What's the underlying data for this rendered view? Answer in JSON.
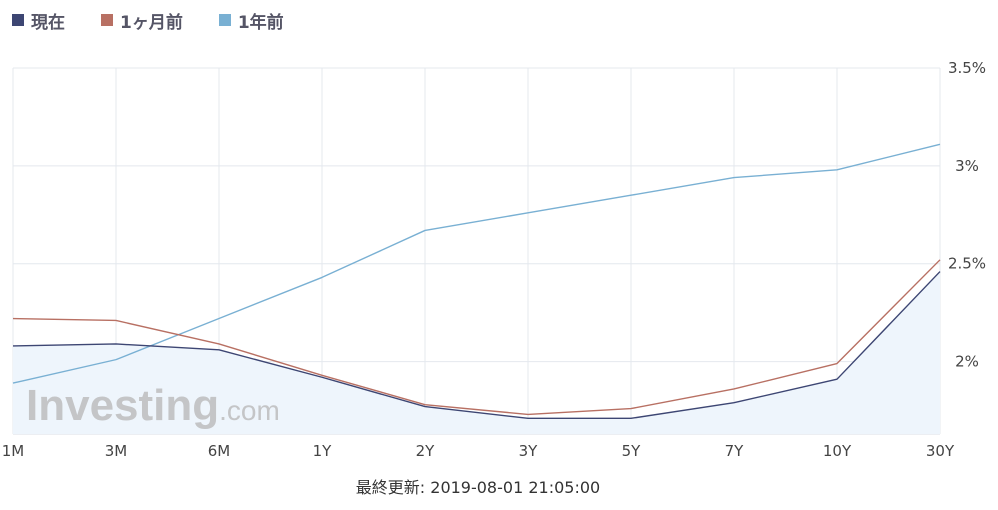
{
  "chart_data": {
    "type": "line",
    "categories": [
      "1M",
      "3M",
      "6M",
      "1Y",
      "2Y",
      "3Y",
      "5Y",
      "7Y",
      "10Y",
      "30Y"
    ],
    "series": [
      {
        "name": "現在",
        "color": "#3d4673",
        "values": [
          2.08,
          2.09,
          2.06,
          1.92,
          1.77,
          1.71,
          1.71,
          1.79,
          1.91,
          2.46
        ]
      },
      {
        "name": "1ヶ月前",
        "color": "#b87063",
        "values": [
          2.22,
          2.21,
          2.09,
          1.93,
          1.78,
          1.73,
          1.76,
          1.86,
          1.99,
          2.52
        ]
      },
      {
        "name": "1年前",
        "color": "#79b0d3",
        "values": [
          1.89,
          2.01,
          2.22,
          2.43,
          2.67,
          2.76,
          2.85,
          2.94,
          2.98,
          3.11
        ]
      }
    ],
    "y_ticks": [
      "2%",
      "2.5%",
      "3%",
      "3.5%"
    ],
    "y_tick_values": [
      2.0,
      2.5,
      3.0,
      3.5
    ],
    "ylim": [
      1.63,
      3.5
    ],
    "grid": true,
    "legend_position": "top-left",
    "filled_series": "現在",
    "fill_color": "#eef5fc"
  },
  "watermark": {
    "brand": "Investing",
    "suffix": ".com"
  },
  "footer": {
    "updated": "最終更新: 2019-08-01 21:05:00"
  }
}
